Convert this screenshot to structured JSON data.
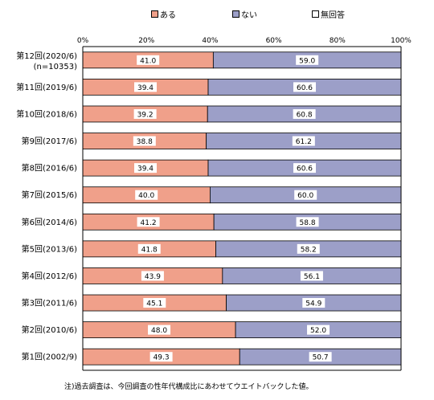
{
  "chart_data": {
    "type": "bar",
    "orientation": "horizontal",
    "stacked": "percent",
    "categories": [
      "第12回(2020/6)",
      "第11回(2019/6)",
      "第10回(2018/6)",
      "第9回(2017/6)",
      "第8回(2016/6)",
      "第7回(2015/6)",
      "第6回(2014/6)",
      "第5回(2013/6)",
      "第4回(2012/6)",
      "第3回(2011/6)",
      "第2回(2010/6)",
      "第1回(2002/9)"
    ],
    "category_sublabel": "(n=10353)",
    "series": [
      {
        "name": "ある",
        "color": "#f0a08a",
        "values": [
          41.0,
          39.4,
          39.2,
          38.8,
          39.4,
          40.0,
          41.2,
          41.8,
          43.9,
          45.1,
          48.0,
          49.3
        ],
        "labels": [
          "41.0",
          "39.4",
          "39.2",
          "38.8",
          "39.4",
          "40.0",
          "41.2",
          "41.8",
          "43.9",
          "45.1",
          "48.0",
          "49.3"
        ]
      },
      {
        "name": "ない",
        "color": "#9c9fc8",
        "values": [
          59.0,
          60.6,
          60.8,
          61.2,
          60.6,
          60.0,
          58.8,
          58.2,
          56.1,
          54.9,
          52.0,
          50.7
        ],
        "labels": [
          "59.0",
          "60.6",
          "60.8",
          "61.2",
          "60.6",
          "60.0",
          "58.8",
          "58.2",
          "56.1",
          "54.9",
          "52.0",
          "50.7"
        ]
      },
      {
        "name": "無回答",
        "color": "#ffffff",
        "values": [
          0,
          0,
          0,
          0,
          0,
          0,
          0,
          0,
          0,
          0,
          0,
          0
        ]
      }
    ],
    "xaxis": {
      "ticks": [
        "0%",
        "20%",
        "40%",
        "60%",
        "80%",
        "100%"
      ],
      "range": [
        0,
        100
      ]
    },
    "grid": false,
    "legend_position": "top",
    "note": "注)過去調査は、今回調査の性年代構成比にあわせてウエイトバックした値。"
  }
}
